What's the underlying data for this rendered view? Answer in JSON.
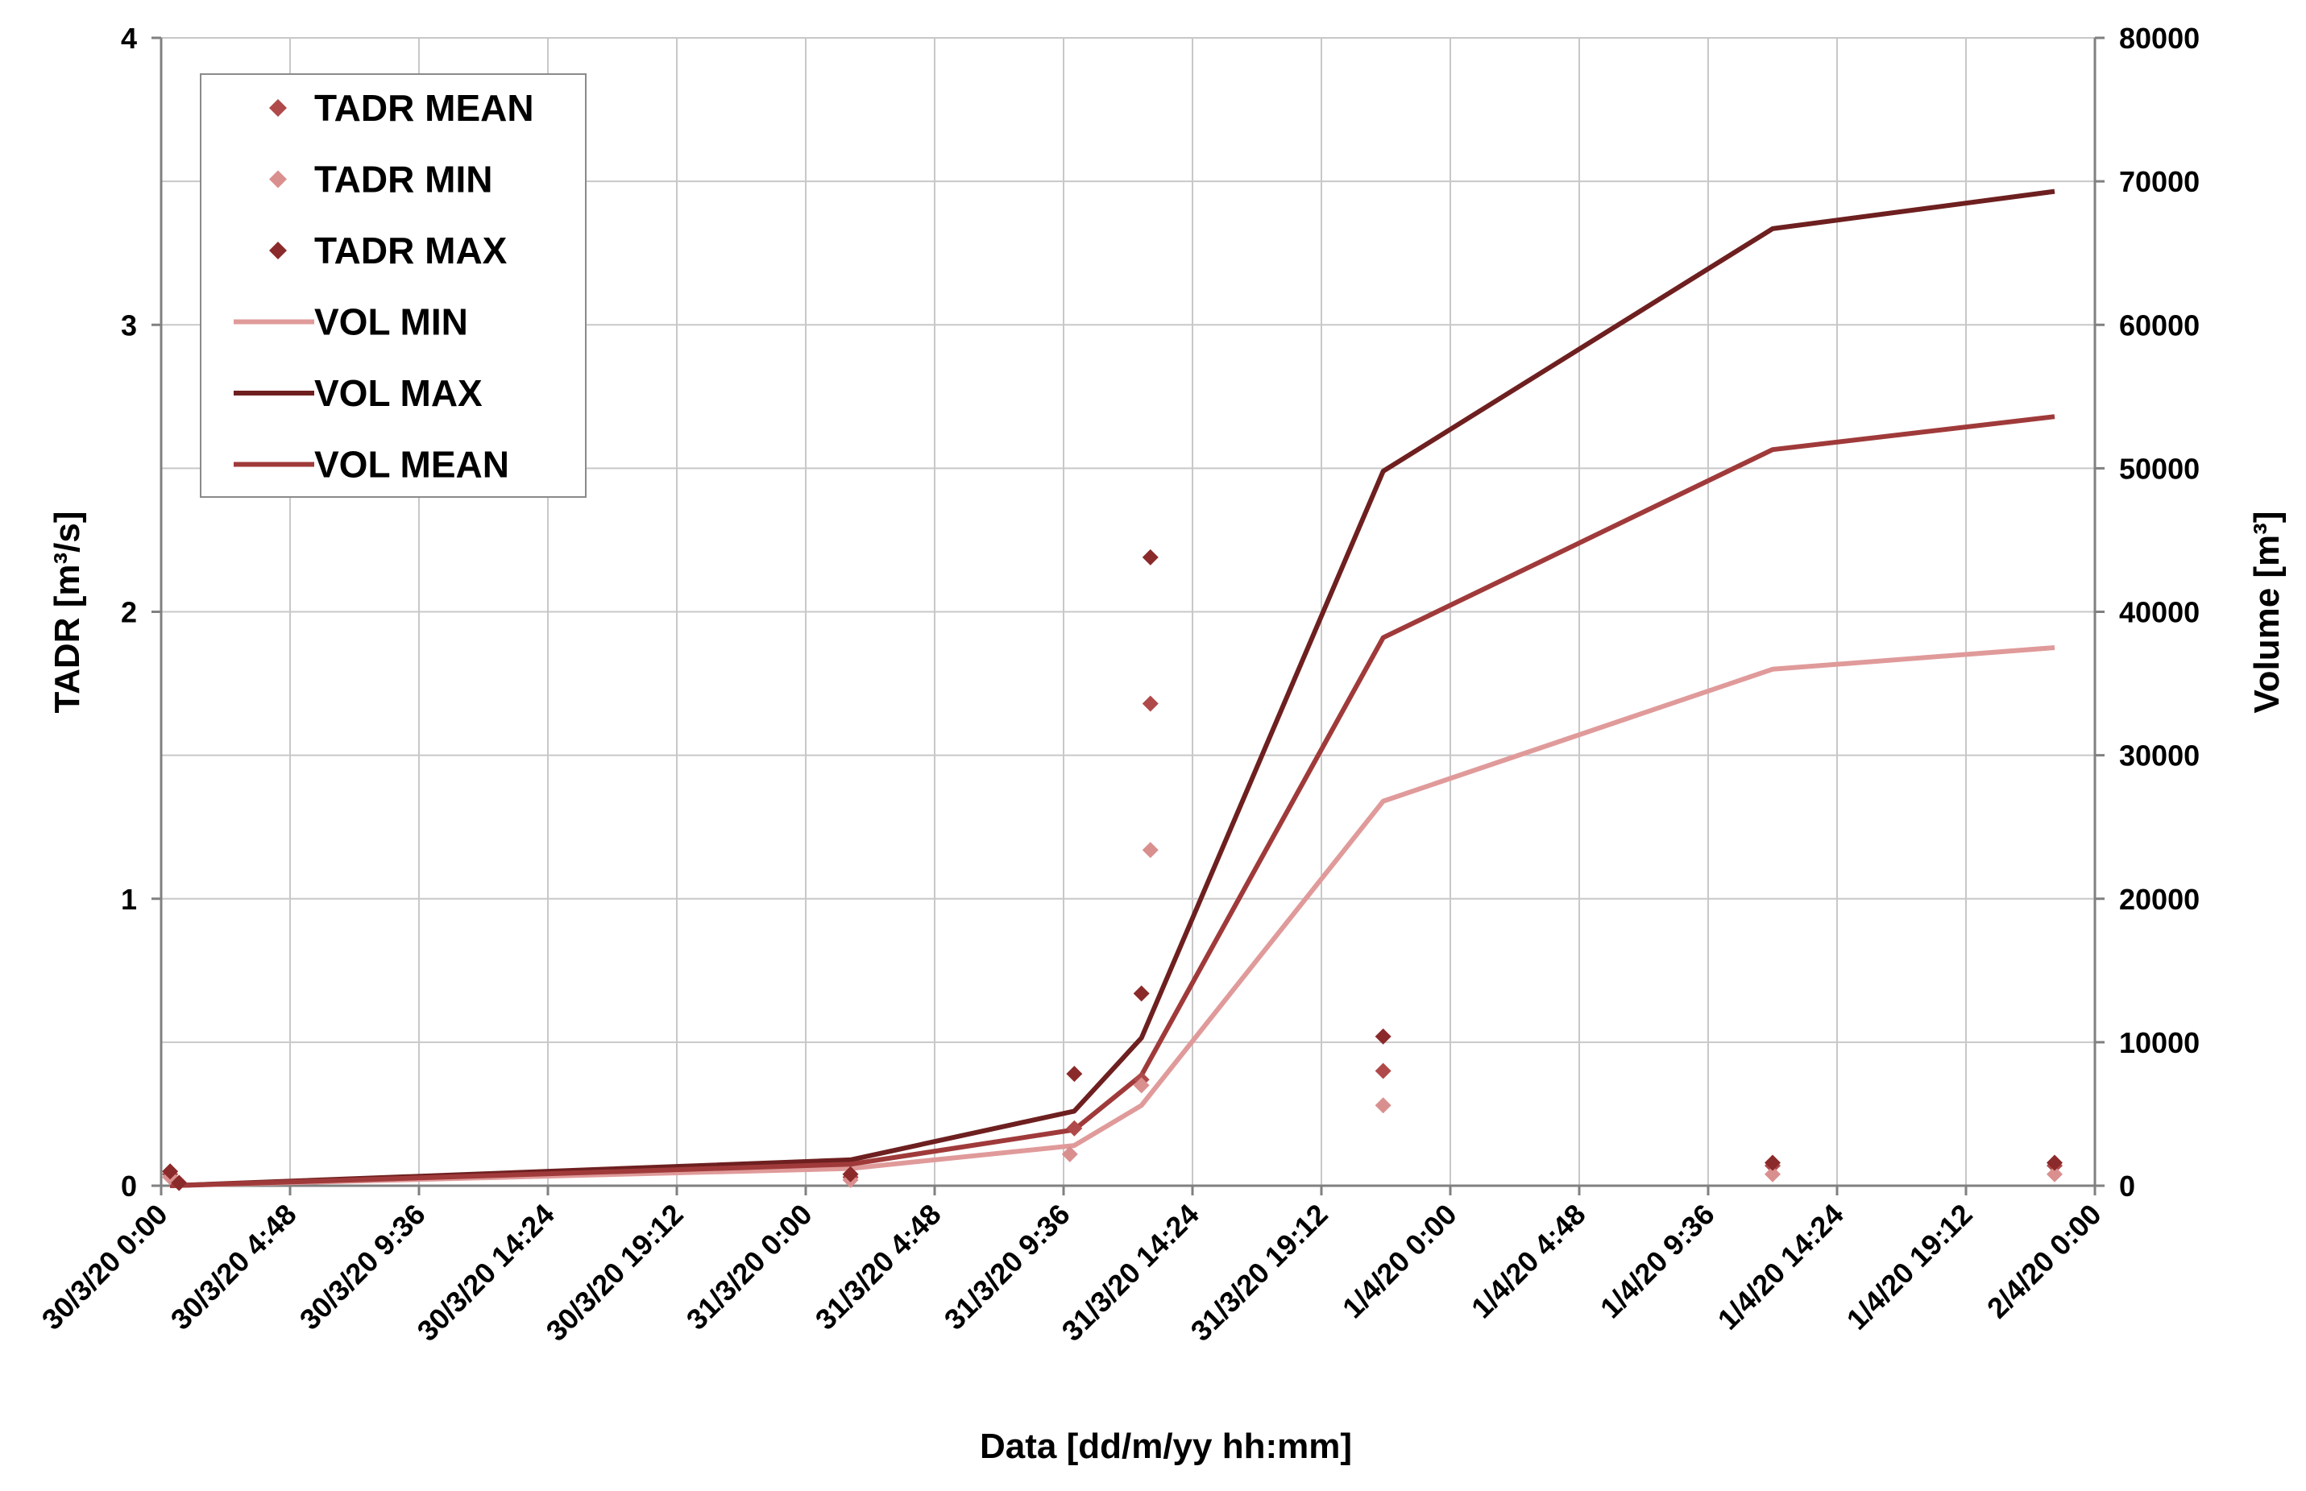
{
  "chart_data": {
    "type": "line",
    "xlabel": "Data [dd/m/yy  hh:mm]",
    "ylabel_left": "TADR [m³/s]",
    "ylabel_right": "Volume  [m³]",
    "x_ticks": [
      "30/3/20 0:00",
      "30/3/20 4:48",
      "30/3/20 9:36",
      "30/3/20 14:24",
      "30/3/20 19:12",
      "31/3/20 0:00",
      "31/3/20 4:48",
      "31/3/20 9:36",
      "31/3/20 14:24",
      "31/3/20 19:12",
      "1/4/20 0:00",
      "1/4/20 4:48",
      "1/4/20 9:36",
      "1/4/20 14:24",
      "1/4/20 19:12",
      "2/4/20 0:00"
    ],
    "xlim": [
      "30/3/20 0:00",
      "2/4/20 0:00"
    ],
    "ylim_left": [
      0,
      4
    ],
    "y_ticks_left": [
      "0",
      "1",
      "2",
      "3",
      "4"
    ],
    "ylim_right": [
      0,
      80000
    ],
    "y_ticks_right": [
      "0",
      "10000",
      "20000",
      "30000",
      "40000",
      "50000",
      "60000",
      "70000",
      "80000"
    ],
    "grid": true,
    "legend_position": "top-left",
    "colors": {
      "tadr_mean": "#b04a4a",
      "tadr_min": "#da8f8f",
      "tadr_max": "#8b2a2a",
      "vol_min": "#e09a9a",
      "vol_max": "#6e1f1f",
      "vol_mean": "#a03a3a"
    },
    "series": [
      {
        "name": "TADR MEAN",
        "kind": "scatter",
        "axis": "left",
        "color": "#b04a4a",
        "x": [
          "30/3/20 0:20",
          "30/3/20 0:40",
          "31/3/20 1:40",
          "31/3/20 10:00",
          "31/3/20 12:30",
          "31/3/20 12:50",
          "31/3/20 21:30",
          "1/4/20 12:00",
          "1/4/20 22:30"
        ],
        "y": [
          0.04,
          0.01,
          0.03,
          0.2,
          0.37,
          1.68,
          0.4,
          0.07,
          0.07
        ]
      },
      {
        "name": "TADR MIN",
        "kind": "scatter",
        "axis": "left",
        "color": "#da8f8f",
        "x": [
          "30/3/20 0:20",
          "30/3/20 0:40",
          "31/3/20 1:40",
          "31/3/20 9:50",
          "31/3/20 12:30",
          "31/3/20 12:50",
          "31/3/20 21:30",
          "1/4/20 12:00",
          "1/4/20 22:30"
        ],
        "y": [
          0.03,
          0.01,
          0.02,
          0.11,
          0.35,
          1.17,
          0.28,
          0.04,
          0.04
        ]
      },
      {
        "name": "TADR MAX",
        "kind": "scatter",
        "axis": "left",
        "color": "#8b2a2a",
        "x": [
          "30/3/20 0:20",
          "30/3/20 0:40",
          "31/3/20 1:40",
          "31/3/20 10:00",
          "31/3/20 12:30",
          "31/3/20 12:50",
          "31/3/20 21:30",
          "1/4/20 12:00",
          "1/4/20 22:30"
        ],
        "y": [
          0.05,
          0.01,
          0.04,
          0.39,
          0.67,
          2.19,
          0.52,
          0.08,
          0.08
        ]
      },
      {
        "name": "VOL MIN",
        "kind": "line",
        "axis": "right",
        "color": "#e09a9a",
        "x": [
          "30/3/20 0:20",
          "31/3/20 1:40",
          "31/3/20 10:00",
          "31/3/20 12:30",
          "31/3/20 21:30",
          "1/4/20 12:00",
          "1/4/20 22:30"
        ],
        "y": [
          0,
          1200,
          2800,
          5600,
          26800,
          36000,
          37500
        ]
      },
      {
        "name": "VOL MAX",
        "kind": "line",
        "axis": "right",
        "color": "#6e1f1f",
        "x": [
          "30/3/20 0:20",
          "31/3/20 1:40",
          "31/3/20 10:00",
          "31/3/20 12:30",
          "31/3/20 21:30",
          "1/4/20 12:00",
          "1/4/20 22:30"
        ],
        "y": [
          0,
          1800,
          5200,
          10300,
          49800,
          66700,
          69300
        ]
      },
      {
        "name": "VOL MEAN",
        "kind": "line",
        "axis": "right",
        "color": "#a03a3a",
        "x": [
          "30/3/20 0:20",
          "31/3/20 1:40",
          "31/3/20 10:00",
          "31/3/20 12:30",
          "31/3/20 21:30",
          "1/4/20 12:00",
          "1/4/20 22:30"
        ],
        "y": [
          0,
          1500,
          3900,
          7700,
          38200,
          51300,
          53600
        ]
      }
    ]
  }
}
